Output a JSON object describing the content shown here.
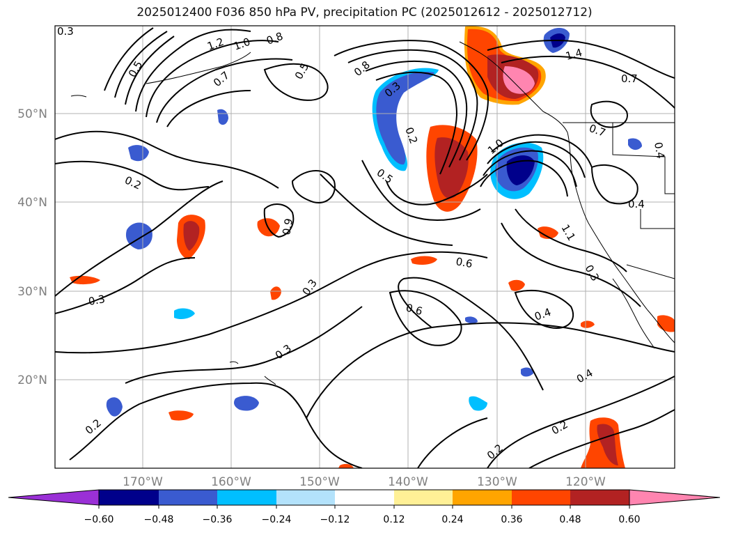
{
  "title": "2025012400 F036 850 hPa PV, precipitation PC (2025012612 - 2025012712)",
  "map": {
    "lat_labels": [
      "50°N",
      "40°N",
      "30°N",
      "20°N"
    ],
    "lon_labels": [
      "170°W",
      "160°W",
      "150°W",
      "140°W",
      "130°W",
      "120°W"
    ],
    "lat_range": [
      10,
      59.5
    ],
    "lon_range": [
      -180,
      -110
    ],
    "grid": true,
    "contour_labels": [
      "0.3",
      "1.2",
      "1.0",
      "0.8",
      "0.5",
      "0.7",
      "0.5",
      "0.8",
      "0.3",
      "0.2",
      "0.5",
      "1.4",
      "0.7",
      "0.7",
      "0.4",
      "0.2",
      "0.9",
      "1.0",
      "0.4",
      "0.6",
      "0.3",
      "0.3",
      "0.6",
      "0.4",
      "0.3",
      "0.2",
      "0.2",
      "0.4",
      "0.2",
      "0.3",
      "1.1"
    ]
  },
  "colorbar": {
    "ticks": [
      "−0.60",
      "−0.48",
      "−0.36",
      "−0.24",
      "−0.12",
      "0.12",
      "0.24",
      "0.36",
      "0.48",
      "0.60"
    ],
    "colors": [
      "#9a30d6",
      "#00008b",
      "#3a5bd0",
      "#00bfff",
      "#b3e2fb",
      "#ffffff",
      "#fff096",
      "#ffa500",
      "#ff4500",
      "#b22222",
      "#ff85b0"
    ],
    "extend": "both"
  }
}
